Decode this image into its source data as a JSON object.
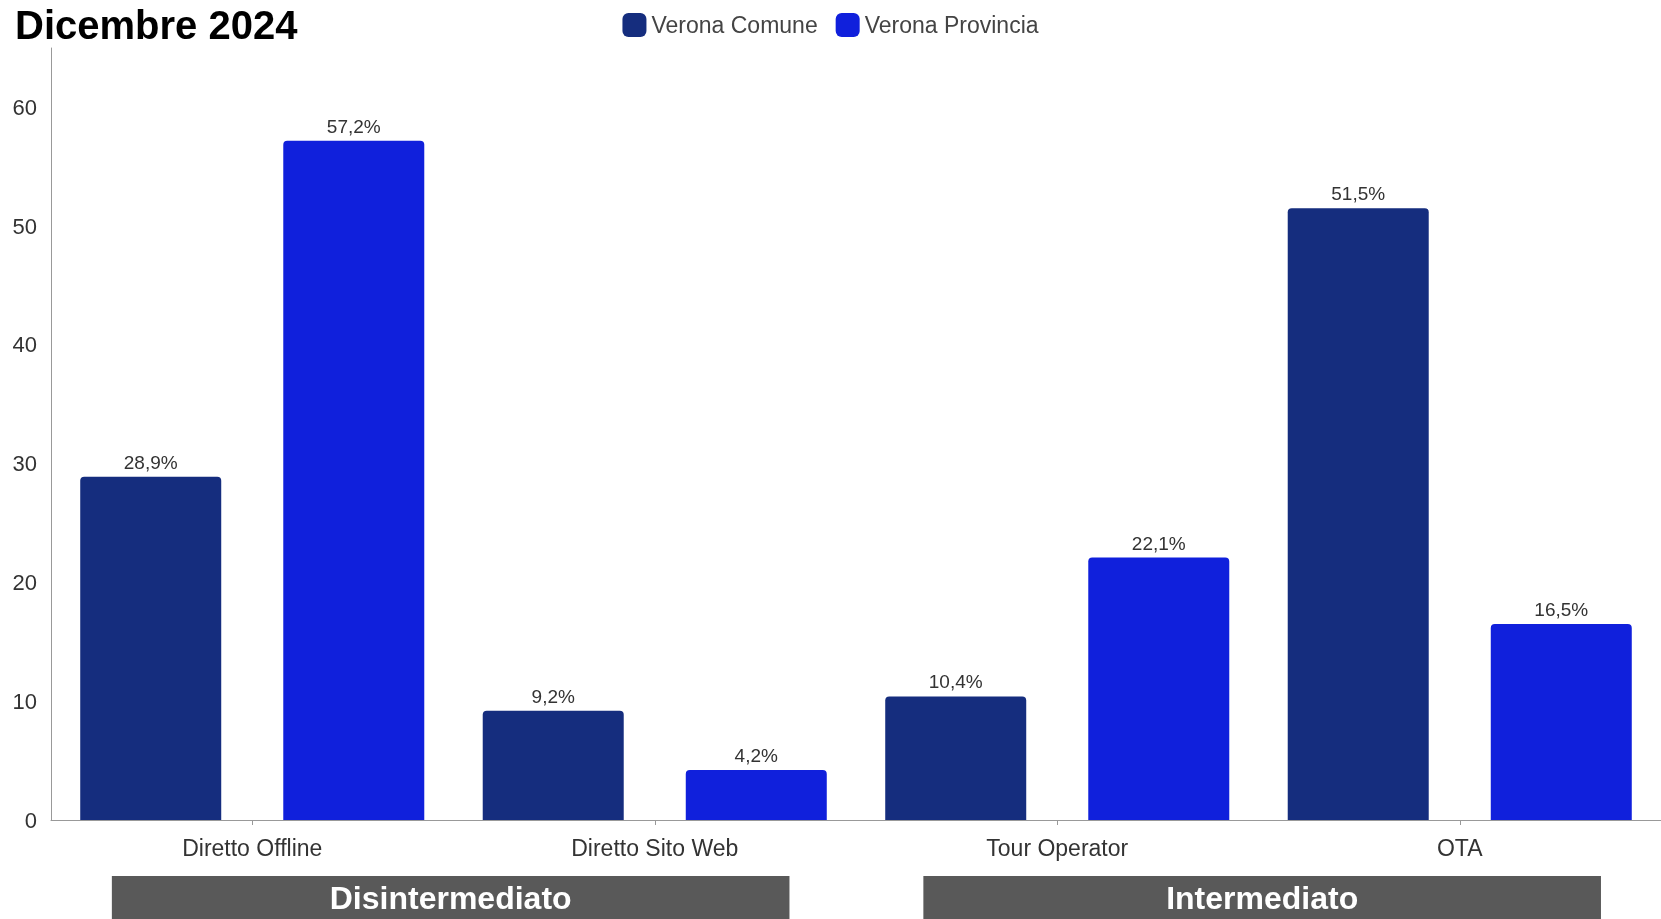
{
  "chart_data": {
    "type": "bar",
    "title": "Dicembre 2024",
    "categories": [
      "Diretto Offline",
      "Diretto Sito Web",
      "Tour Operator",
      "OTA"
    ],
    "series": [
      {
        "name": "Verona Comune",
        "color": "#152d7e",
        "values": [
          28.9,
          9.2,
          10.4,
          51.5
        ],
        "value_labels": [
          "28,9%",
          "9,2%",
          "10,4%",
          "51,5%"
        ]
      },
      {
        "name": "Verona Provincia",
        "color": "#1020dc",
        "values": [
          57.2,
          4.2,
          22.1,
          16.5
        ],
        "value_labels": [
          "57,2%",
          "4,2%",
          "22,1%",
          "16,5%"
        ]
      }
    ],
    "ylim": [
      0,
      65
    ],
    "yticks": [
      0,
      10,
      20,
      30,
      40,
      50,
      60
    ],
    "grid": false,
    "legend": "top",
    "annotations": [
      "Disintermediato",
      "Intermediato"
    ]
  }
}
